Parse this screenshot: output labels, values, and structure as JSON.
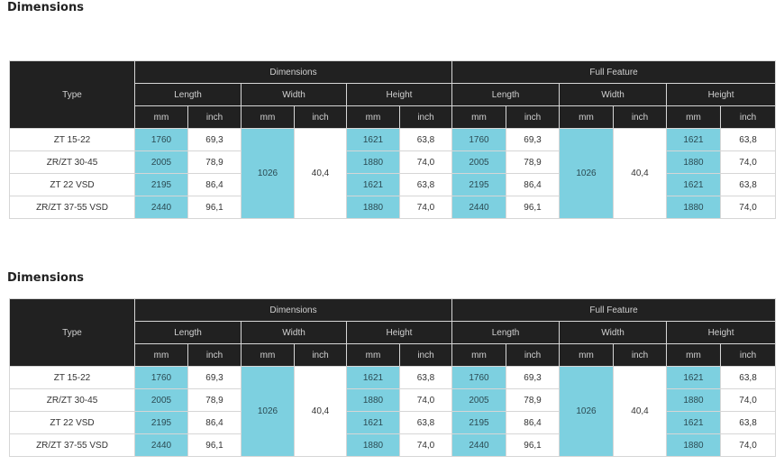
{
  "sections": [
    {
      "title": "Dimensions",
      "headers": {
        "type": "Type",
        "group1": "Dimensions",
        "group2": "Full Feature",
        "length": "Length",
        "width": "Width",
        "height": "Height",
        "mm": "mm",
        "inch": "inch"
      },
      "rows": [
        {
          "type": "ZT 15-22",
          "l_mm": "1760",
          "l_in": "69,3",
          "h_mm": "1621",
          "h_in": "63,8",
          "fl_mm": "1760",
          "fl_in": "69,3",
          "fh_mm": "1621",
          "fh_in": "63,8"
        },
        {
          "type": "ZR/ZT 30-45",
          "l_mm": "2005",
          "l_in": "78,9",
          "h_mm": "1880",
          "h_in": "74,0",
          "fl_mm": "2005",
          "fl_in": "78,9",
          "fh_mm": "1880",
          "fh_in": "74,0"
        },
        {
          "type": "ZT 22 VSD",
          "l_mm": "2195",
          "l_in": "86,4",
          "h_mm": "1621",
          "h_in": "63,8",
          "fl_mm": "2195",
          "fl_in": "86,4",
          "fh_mm": "1621",
          "fh_in": "63,8"
        },
        {
          "type": "ZR/ZT 37-55 VSD",
          "l_mm": "2440",
          "l_in": "96,1",
          "h_mm": "1880",
          "h_in": "74,0",
          "fl_mm": "2440",
          "fl_in": "96,1",
          "fh_mm": "1880",
          "fh_in": "74,0"
        }
      ],
      "width_mm": "1026",
      "width_in": "40,4",
      "fwidth_mm": "1026",
      "fwidth_in": "40,4"
    },
    {
      "title": "Dimensions",
      "headers": {
        "type": "Type",
        "group1": "Dimensions",
        "group2": "Full Feature",
        "length": "Length",
        "width": "Width",
        "height": "Height",
        "mm": "mm",
        "inch": "inch"
      },
      "rows": [
        {
          "type": "ZT 15-22",
          "l_mm": "1760",
          "l_in": "69,3",
          "h_mm": "1621",
          "h_in": "63,8",
          "fl_mm": "1760",
          "fl_in": "69,3",
          "fh_mm": "1621",
          "fh_in": "63,8"
        },
        {
          "type": "ZR/ZT 30-45",
          "l_mm": "2005",
          "l_in": "78,9",
          "h_mm": "1880",
          "h_in": "74,0",
          "fl_mm": "2005",
          "fl_in": "78,9",
          "fh_mm": "1880",
          "fh_in": "74,0"
        },
        {
          "type": "ZT 22 VSD",
          "l_mm": "2195",
          "l_in": "86,4",
          "h_mm": "1621",
          "h_in": "63,8",
          "fl_mm": "2195",
          "fl_in": "86,4",
          "fh_mm": "1621",
          "fh_in": "63,8"
        },
        {
          "type": "ZR/ZT 37-55 VSD",
          "l_mm": "2440",
          "l_in": "96,1",
          "h_mm": "1880",
          "h_in": "74,0",
          "fl_mm": "2440",
          "fl_in": "96,1",
          "fh_mm": "1880",
          "fh_in": "74,0"
        }
      ],
      "width_mm": "1026",
      "width_in": "40,4",
      "fwidth_mm": "1026",
      "fwidth_in": "40,4"
    }
  ],
  "colors": {
    "header_bg": "#212121",
    "highlight": "#7dd0e0"
  }
}
